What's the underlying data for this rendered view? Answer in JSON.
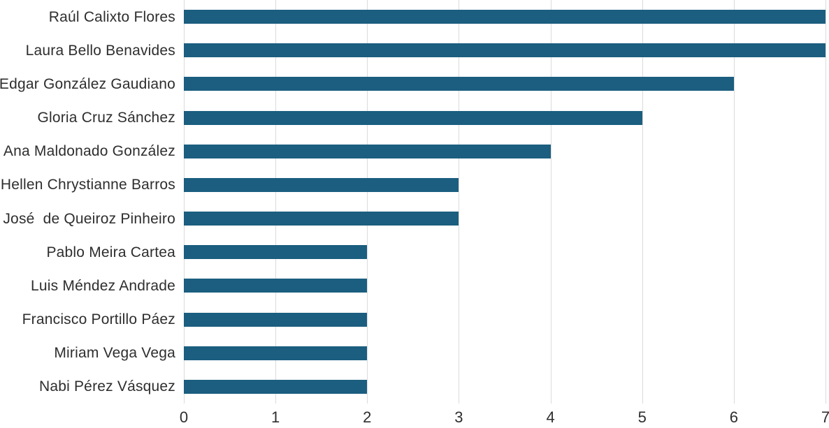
{
  "chart_data": {
    "type": "bar",
    "orientation": "horizontal",
    "title": "",
    "xlabel": "",
    "ylabel": "",
    "categories": [
      "Raúl Calixto Flores",
      "Laura Bello Benavides",
      "Edgar González Gaudiano",
      "Gloria Cruz Sánchez",
      "Ana Maldonado González",
      "Hellen Chrystianne Barros",
      "José  de Queiroz Pinheiro",
      "Pablo Meira Cartea",
      "Luis Méndez Andrade",
      "Francisco Portillo Páez",
      "Miriam Vega Vega",
      "Nabi Pérez Vásquez"
    ],
    "values": [
      7,
      7,
      6,
      5,
      4,
      3,
      3,
      2,
      2,
      2,
      2,
      2
    ],
    "xlim": [
      0,
      7
    ],
    "x_ticks": [
      "0",
      "1",
      "2",
      "3",
      "4",
      "5",
      "6",
      "7"
    ],
    "grid": true,
    "legend": "none",
    "colors": {
      "bar": "#1B5E7F",
      "gridline": "#DBDBDB",
      "text": "#2E2E2E",
      "background": "#FFFFFF"
    }
  }
}
